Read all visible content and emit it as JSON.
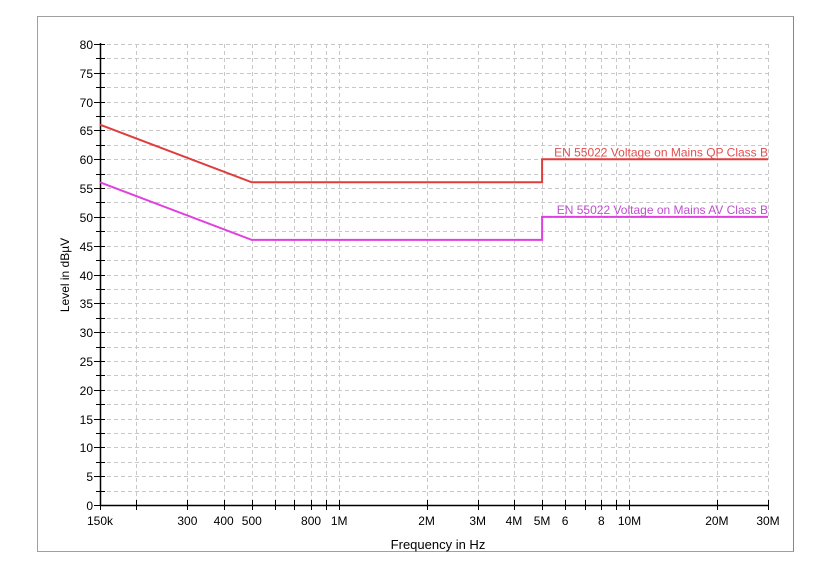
{
  "chart_data": {
    "type": "line",
    "title": "",
    "xlabel": "Frequency in Hz",
    "ylabel": "Level in dBµV",
    "x_scale": "log",
    "xlim": [
      150000,
      30000000
    ],
    "ylim": [
      0,
      80
    ],
    "grid": true,
    "x_ticks": [
      150000,
      200000,
      300000,
      400000,
      500000,
      600000,
      700000,
      800000,
      900000,
      1000000,
      2000000,
      3000000,
      4000000,
      5000000,
      6000000,
      7000000,
      8000000,
      9000000,
      10000000,
      20000000,
      30000000
    ],
    "x_tick_labels": [
      {
        "value": 150000,
        "label": "150k"
      },
      {
        "value": 300000,
        "label": "300"
      },
      {
        "value": 400000,
        "label": "400"
      },
      {
        "value": 500000,
        "label": "500"
      },
      {
        "value": 800000,
        "label": "800"
      },
      {
        "value": 1000000,
        "label": "1M"
      },
      {
        "value": 2000000,
        "label": "2M"
      },
      {
        "value": 3000000,
        "label": "3M"
      },
      {
        "value": 4000000,
        "label": "4M"
      },
      {
        "value": 5000000,
        "label": "5M"
      },
      {
        "value": 6000000,
        "label": "6"
      },
      {
        "value": 8000000,
        "label": "8"
      },
      {
        "value": 10000000,
        "label": "10M"
      },
      {
        "value": 20000000,
        "label": "20M"
      },
      {
        "value": 30000000,
        "label": "30M"
      }
    ],
    "y_ticks": [
      0,
      5,
      10,
      15,
      20,
      25,
      30,
      35,
      40,
      45,
      50,
      55,
      60,
      65,
      70,
      75,
      80
    ],
    "series": [
      {
        "name": "EN 55022 Voltage on Mains QP Class B",
        "color": "#e03c3c",
        "label_color": "#e05050",
        "points": [
          [
            150000,
            66
          ],
          [
            500000,
            56
          ],
          [
            5000000,
            56
          ],
          [
            5000000,
            60
          ],
          [
            30000000,
            60
          ]
        ]
      },
      {
        "name": "EN 55022 Voltage on Mains AV Class B",
        "color": "#e040e0",
        "label_color": "#c050d0",
        "points": [
          [
            150000,
            56
          ],
          [
            500000,
            46
          ],
          [
            5000000,
            46
          ],
          [
            5000000,
            50
          ],
          [
            30000000,
            50
          ]
        ]
      }
    ]
  }
}
